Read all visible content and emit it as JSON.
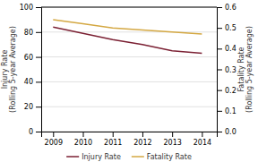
{
  "chart_data": {
    "type": "line",
    "x": [
      2009,
      2010,
      2011,
      2012,
      2013,
      2014
    ],
    "xlim": [
      2008.6,
      2014.5
    ],
    "xticks": [
      2009,
      2010,
      2011,
      2012,
      2013,
      2014
    ],
    "ylabel": "Injury Rate\n(Rolling 5-year Average)",
    "y2label": "Fatality Rate\n(Rolling 5-year Average)",
    "ylim": [
      0,
      100
    ],
    "yticks": [
      0,
      20,
      40,
      60,
      80,
      100
    ],
    "y2lim": [
      0.0,
      0.6
    ],
    "y2ticks": [
      {
        "value": 0.0,
        "label": "0.0"
      },
      0.1,
      0.2,
      0.3,
      0.4,
      0.5,
      0.6
    ],
    "grid": true,
    "legend": "bottom",
    "series": [
      {
        "name": "Injury Rate",
        "color": "#7B2033",
        "values": [
          84,
          79,
          74,
          70,
          65,
          63
        ]
      },
      {
        "name": "Fatality Rate",
        "color": "#D4A843",
        "axis": "y2",
        "values": [
          0.54,
          0.52,
          0.5,
          0.49,
          0.48,
          0.47
        ]
      }
    ]
  }
}
